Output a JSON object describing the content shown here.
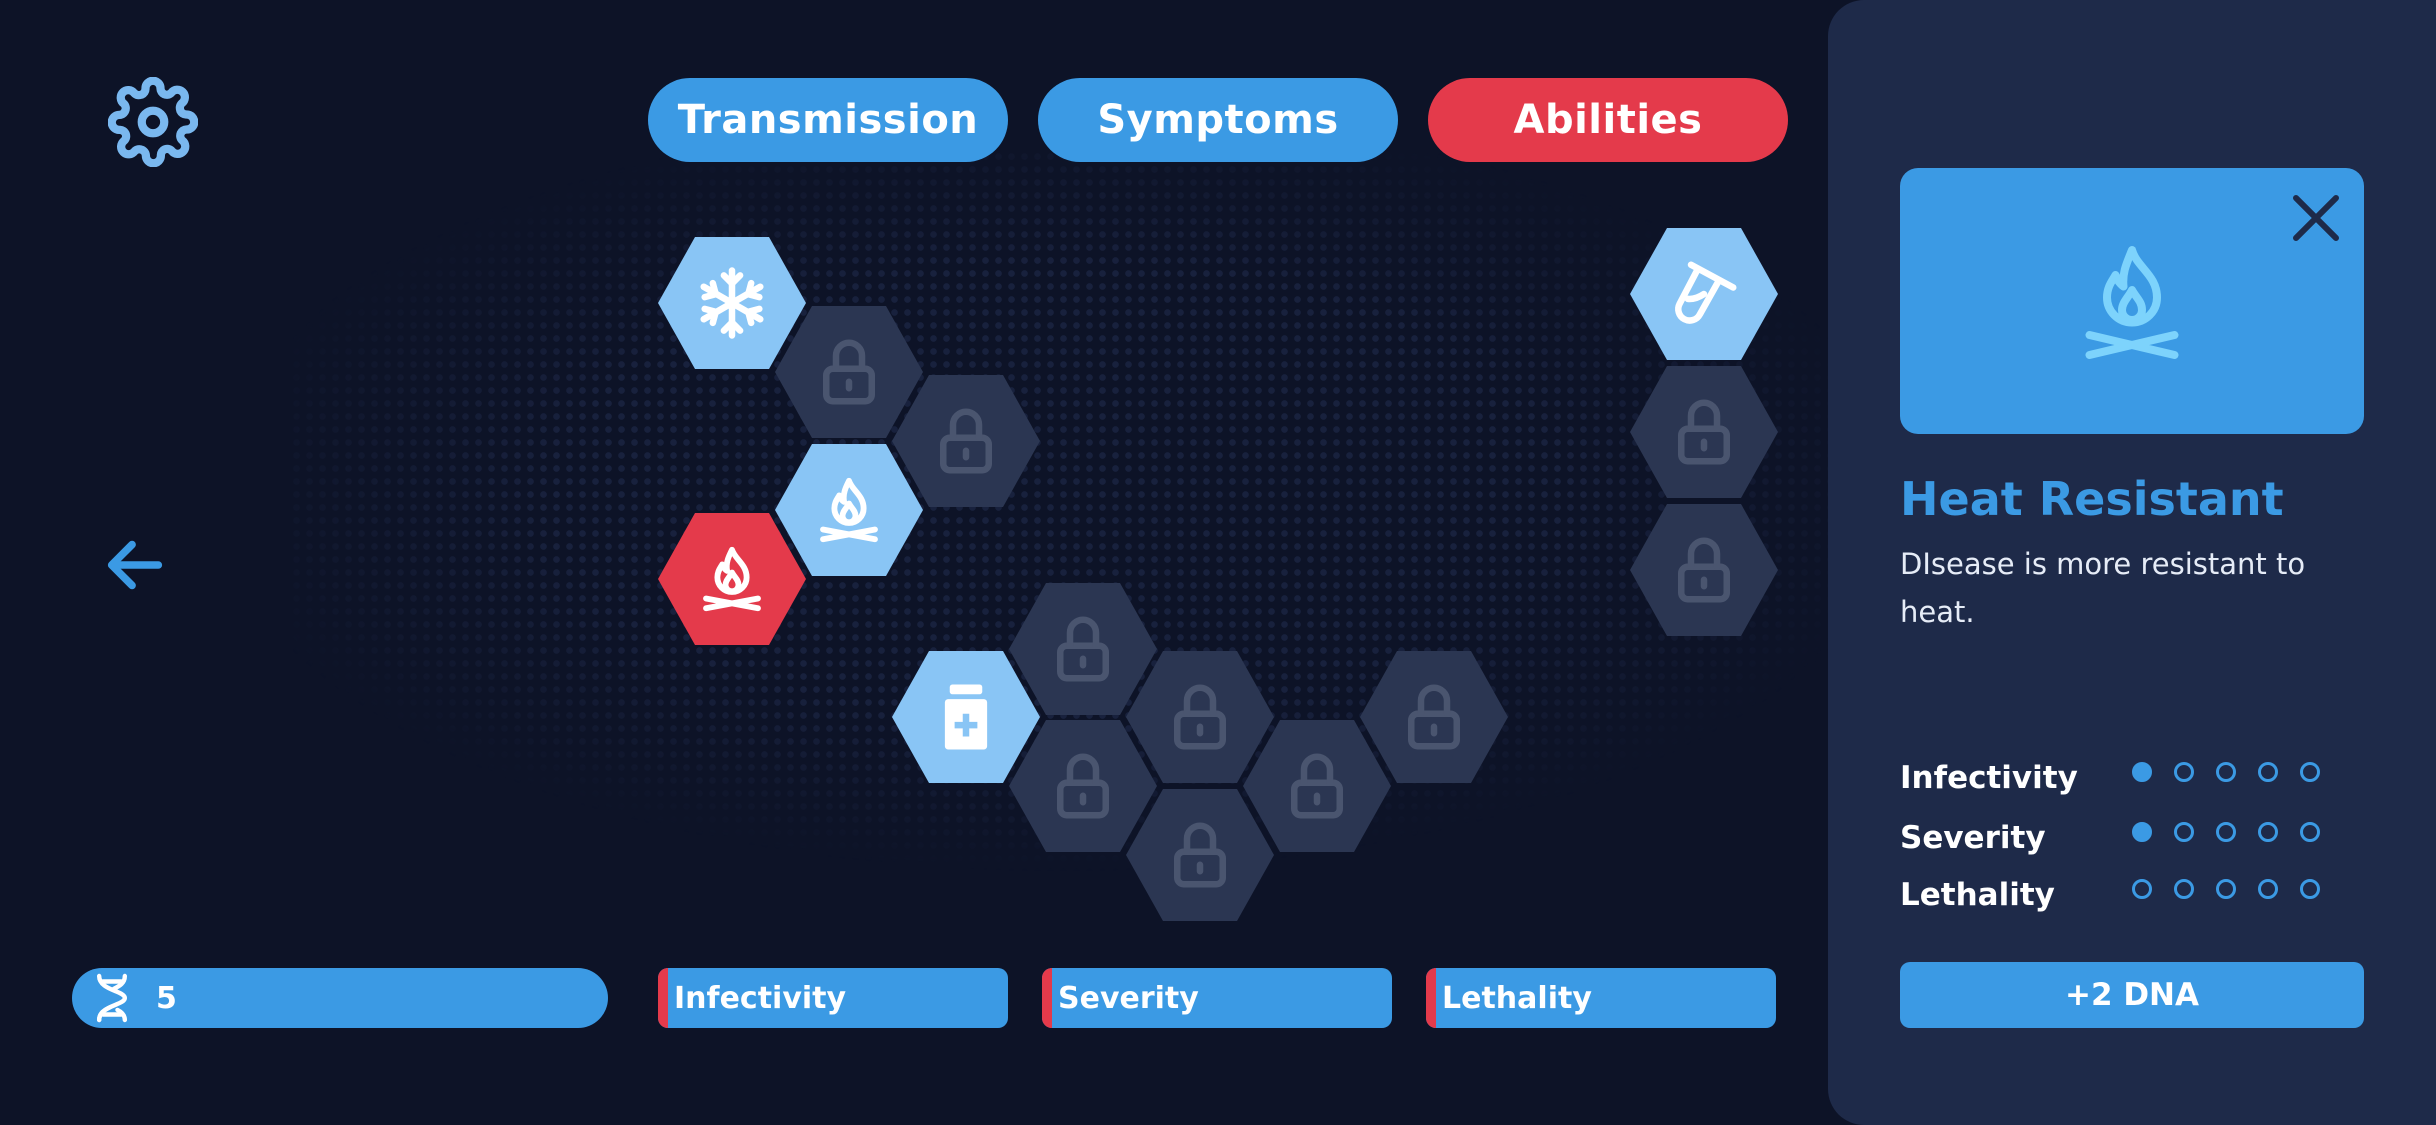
{
  "tabs": [
    {
      "label": "Transmission",
      "state": "inactive"
    },
    {
      "label": "Symptoms",
      "state": "inactive"
    },
    {
      "label": "Abilities",
      "state": "active"
    }
  ],
  "colors": {
    "background": "#0d1327",
    "panel": "#1e2a49",
    "accent_blue": "#3b9ae4",
    "accent_red": "#e43a4b",
    "unlocked_tile": "#89c5f5",
    "locked_tile": "#2b3652"
  },
  "ability_tree": [
    {
      "icon": "snowflake-icon",
      "state": "unlocked"
    },
    {
      "icon": "lock-icon",
      "state": "locked"
    },
    {
      "icon": "lock-icon",
      "state": "locked"
    },
    {
      "icon": "campfire-icon",
      "state": "unlocked"
    },
    {
      "icon": "campfire-icon",
      "state": "selected"
    },
    {
      "icon": "medicine-bottle-icon",
      "state": "unlocked"
    },
    {
      "icon": "lock-icon",
      "state": "locked"
    },
    {
      "icon": "lock-icon",
      "state": "locked"
    },
    {
      "icon": "lock-icon",
      "state": "locked"
    },
    {
      "icon": "lock-icon",
      "state": "locked"
    },
    {
      "icon": "lock-icon",
      "state": "locked"
    },
    {
      "icon": "lock-icon",
      "state": "locked"
    },
    {
      "icon": "test-tube-icon",
      "state": "unlocked"
    },
    {
      "icon": "lock-icon",
      "state": "locked"
    },
    {
      "icon": "lock-icon",
      "state": "locked"
    }
  ],
  "bottom_bar": {
    "dna_points": "5",
    "infectivity_label": "Infectivity",
    "severity_label": "Severity",
    "lethality_label": "Lethality"
  },
  "detail_panel": {
    "icon": "campfire-icon",
    "title": "Heat Resistant",
    "description": "DIsease is more resistant to heat.",
    "stats": [
      {
        "label": "Infectivity",
        "level": 1,
        "max": 5
      },
      {
        "label": "Severity",
        "level": 1,
        "max": 5
      },
      {
        "label": "Lethality",
        "level": 0,
        "max": 5
      }
    ],
    "cost_label": "+2 DNA"
  }
}
